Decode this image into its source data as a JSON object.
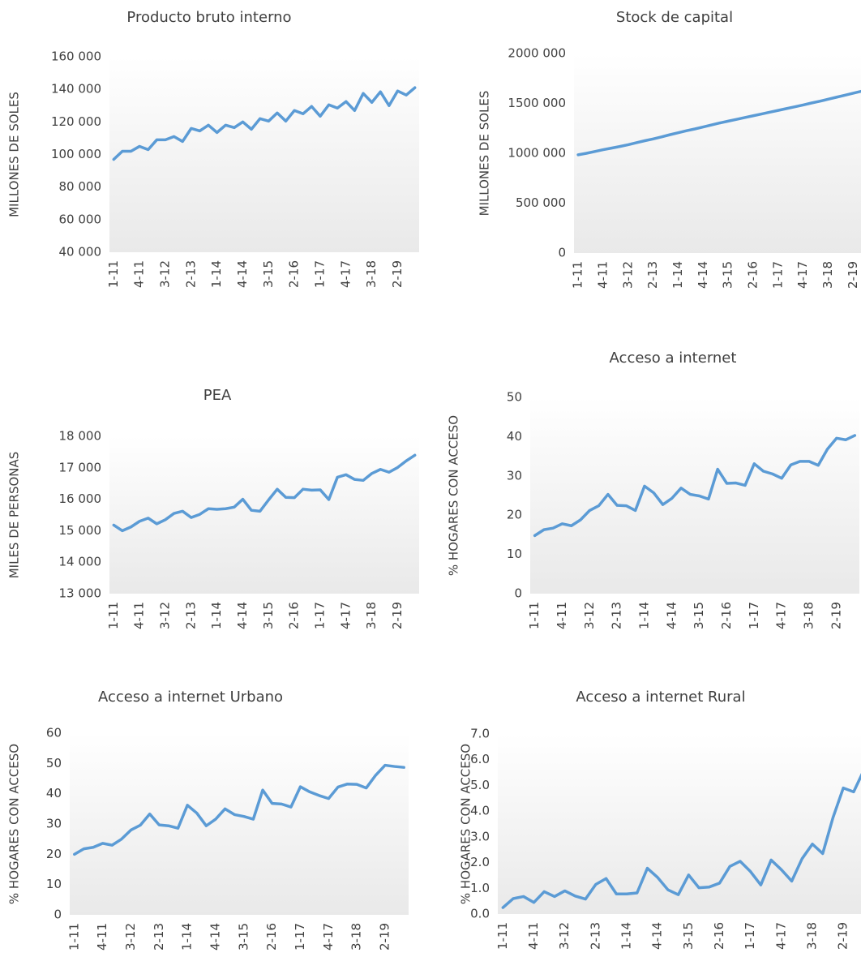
{
  "chart_data": [
    {
      "type": "line",
      "title": "Producto bruto interno",
      "y_label": "MILLONES DE SOLES",
      "categories": [
        "1-11",
        null,
        null,
        "4-11",
        null,
        null,
        "3-12",
        null,
        null,
        "2-13",
        null,
        null,
        "1-14",
        null,
        null,
        "4-14",
        null,
        null,
        "3-15",
        null,
        null,
        "2-16",
        null,
        null,
        "1-17",
        null,
        null,
        "4-17",
        null,
        null,
        "3-18",
        null,
        null,
        "2-19",
        null,
        null
      ],
      "values": [
        97000,
        102000,
        102000,
        105000,
        103000,
        109000,
        109000,
        111000,
        108000,
        116000,
        114500,
        118000,
        113500,
        118000,
        116500,
        120000,
        115500,
        122000,
        120500,
        125500,
        120500,
        127000,
        125000,
        129500,
        123500,
        130500,
        128500,
        132500,
        127000,
        137500,
        132000,
        138500,
        130000,
        139000,
        136500,
        141000
      ],
      "color": "#5b9bd5",
      "ylim": [
        40000,
        160000
      ],
      "yticks": [
        {
          "value": 40000,
          "label": "40 000"
        },
        {
          "value": 60000,
          "label": "60 000"
        },
        {
          "value": 80000,
          "label": "80 000"
        },
        {
          "value": 100000,
          "label": "100 000"
        },
        {
          "value": 120000,
          "label": "120 000"
        },
        {
          "value": 140000,
          "label": "140 000"
        },
        {
          "value": 160000,
          "label": "160 000"
        }
      ]
    },
    {
      "type": "line",
      "title": "Stock de capital",
      "y_label": "MILLONES DE SOLES",
      "categories": [
        "1-11",
        null,
        null,
        "4-11",
        null,
        null,
        "3-12",
        null,
        null,
        "2-13",
        null,
        null,
        "1-14",
        null,
        null,
        "4-14",
        null,
        null,
        "3-15",
        null,
        null,
        "2-16",
        null,
        null,
        "1-17",
        null,
        null,
        "4-17",
        null,
        null,
        "3-18",
        null,
        null,
        "2-19",
        null,
        null
      ],
      "values": [
        985000,
        1000000,
        1018000,
        1036000,
        1052000,
        1068000,
        1086000,
        1106000,
        1126000,
        1144000,
        1164000,
        1186000,
        1206000,
        1226000,
        1244000,
        1264000,
        1284000,
        1304000,
        1322000,
        1340000,
        1358000,
        1376000,
        1394000,
        1412000,
        1430000,
        1448000,
        1466000,
        1484000,
        1504000,
        1522000,
        1542000,
        1562000,
        1582000,
        1602000,
        1622000,
        1645000
      ],
      "color": "#5b9bd5",
      "ylim": [
        0,
        2000000
      ],
      "yticks": [
        0,
        {
          "value": 500000,
          "label": "500 000"
        },
        {
          "value": 1000000,
          "label": "1000 000"
        },
        {
          "value": 1500000,
          "label": "1500 000"
        },
        {
          "value": 2000000,
          "label": "2000 000"
        }
      ]
    },
    {
      "type": "line",
      "title": "PEA",
      "y_label": "MILES DE PERSONAS",
      "categories": [
        "1-11",
        null,
        null,
        "4-11",
        null,
        null,
        "3-12",
        null,
        null,
        "2-13",
        null,
        null,
        "1-14",
        null,
        null,
        "4-14",
        null,
        null,
        "3-15",
        null,
        null,
        "2-16",
        null,
        null,
        "1-17",
        null,
        null,
        "4-17",
        null,
        null,
        "3-18",
        null,
        null,
        "2-19",
        null,
        null
      ],
      "values": [
        15180,
        15000,
        15120,
        15300,
        15400,
        15220,
        15350,
        15550,
        15620,
        15420,
        15520,
        15700,
        15680,
        15700,
        15750,
        16000,
        15650,
        15620,
        15980,
        16320,
        16060,
        16050,
        16320,
        16290,
        16300,
        15990,
        16700,
        16780,
        16630,
        16600,
        16820,
        16950,
        16860,
        17010,
        17220,
        17400
      ],
      "color": "#5b9bd5",
      "ylim": [
        13000,
        18000
      ],
      "yticks": [
        {
          "value": 13000,
          "label": "13 000"
        },
        {
          "value": 14000,
          "label": "14 000"
        },
        {
          "value": 15000,
          "label": "15 000"
        },
        {
          "value": 16000,
          "label": "16 000"
        },
        {
          "value": 17000,
          "label": "17 000"
        },
        {
          "value": 18000,
          "label": "18 000"
        }
      ]
    },
    {
      "type": "line",
      "title": "Acceso a internet",
      "y_label": "% HOGARES CON ACCESO",
      "categories": [
        "1-11",
        null,
        null,
        "4-11",
        null,
        null,
        "3-12",
        null,
        null,
        "2-13",
        null,
        null,
        "1-14",
        null,
        null,
        "4-14",
        null,
        null,
        "3-15",
        null,
        null,
        "2-16",
        null,
        null,
        "1-17",
        null,
        null,
        "4-17",
        null,
        null,
        "3-18",
        null,
        null,
        "2-19",
        null,
        null
      ],
      "values": [
        14.8,
        16.3,
        16.7,
        17.8,
        17.3,
        18.8,
        21.2,
        22.4,
        25.3,
        22.5,
        22.4,
        21.2,
        27.4,
        25.7,
        22.7,
        24.3,
        26.9,
        25.3,
        24.9,
        24.1,
        31.7,
        28.1,
        28.2,
        27.6,
        33.1,
        31.2,
        30.5,
        29.4,
        32.8,
        33.7,
        33.7,
        32.7,
        36.8,
        39.6,
        39.2,
        40.3
      ],
      "color": "#5b9bd5",
      "ylim": [
        0,
        50
      ],
      "yticks": [
        0,
        10,
        20,
        30,
        40,
        50
      ]
    },
    {
      "type": "line",
      "title": "Acceso a internet Urbano",
      "y_label": "% HOGARES CON ACCESO",
      "categories": [
        "1-11",
        null,
        null,
        "4-11",
        null,
        null,
        "3-12",
        null,
        null,
        "2-13",
        null,
        null,
        "1-14",
        null,
        null,
        "4-14",
        null,
        null,
        "3-15",
        null,
        null,
        "2-16",
        null,
        null,
        "1-17",
        null,
        null,
        "4-17",
        null,
        null,
        "3-18",
        null,
        null,
        "2-19",
        null,
        null
      ],
      "values": [
        20,
        21.8,
        22.3,
        23.6,
        23,
        25,
        28,
        29.6,
        33.3,
        29.7,
        29.4,
        28.6,
        36.2,
        33.6,
        29.4,
        31.6,
        35,
        33.1,
        32.5,
        31.6,
        41.2,
        36.8,
        36.6,
        35.6,
        42.3,
        40.6,
        39.4,
        38.4,
        42.2,
        43.2,
        43.1,
        41.9,
        46.1,
        49.4,
        49,
        48.7
      ],
      "color": "#5b9bd5",
      "ylim": [
        0,
        60
      ],
      "yticks": [
        0,
        10,
        20,
        30,
        40,
        50,
        60
      ]
    },
    {
      "type": "line",
      "title": "Acceso a internet Rural",
      "y_label": "% HOGARES CON ACCESO",
      "categories": [
        "1-11",
        null,
        null,
        "4-11",
        null,
        null,
        "3-12",
        null,
        null,
        "2-13",
        null,
        null,
        "1-14",
        null,
        null,
        "4-14",
        null,
        null,
        "3-15",
        null,
        null,
        "2-16",
        null,
        null,
        "1-17",
        null,
        null,
        "4-17",
        null,
        null,
        "3-18",
        null,
        null,
        "2-19",
        null,
        null
      ],
      "values": [
        0.25,
        0.6,
        0.68,
        0.45,
        0.87,
        0.68,
        0.9,
        0.7,
        0.58,
        1.15,
        1.38,
        0.78,
        0.78,
        0.82,
        1.78,
        1.42,
        0.94,
        0.75,
        1.52,
        1.02,
        1.05,
        1.2,
        1.85,
        2.05,
        1.65,
        1.13,
        2.1,
        1.72,
        1.28,
        2.15,
        2.72,
        2.35,
        3.75,
        4.9,
        4.75,
        5.6
      ],
      "color": "#5b9bd5",
      "ylim": [
        0,
        7
      ],
      "yticks": [
        {
          "value": 0,
          "label": "0.0"
        },
        {
          "value": 1,
          "label": "1.0"
        },
        {
          "value": 2,
          "label": "2.0"
        },
        {
          "value": 3,
          "label": "3.0"
        },
        {
          "value": 4,
          "label": "4.0"
        },
        {
          "value": 5,
          "label": "5.0"
        },
        {
          "value": 6,
          "label": "6.0"
        },
        {
          "value": 7,
          "label": "7.0"
        }
      ]
    }
  ]
}
